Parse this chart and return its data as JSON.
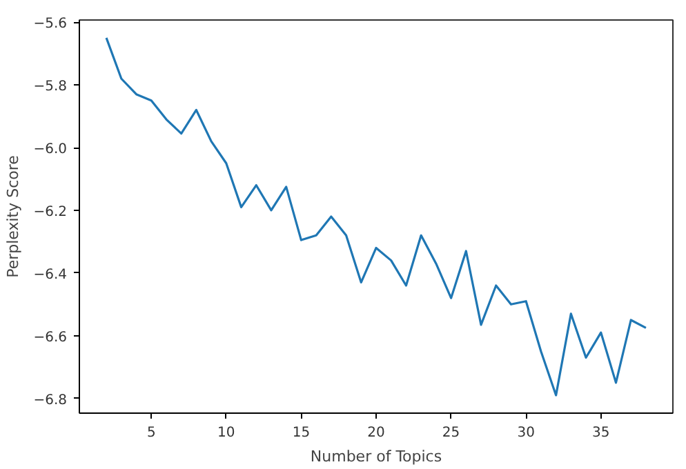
{
  "chart_data": {
    "type": "line",
    "xlabel": "Number of Topics",
    "ylabel": "Perplexity Score",
    "x": [
      2,
      3,
      4,
      5,
      6,
      7,
      8,
      9,
      10,
      11,
      12,
      13,
      14,
      15,
      16,
      17,
      18,
      19,
      20,
      21,
      22,
      23,
      24,
      25,
      26,
      27,
      28,
      29,
      30,
      31,
      32,
      33,
      34,
      35,
      36,
      37,
      38
    ],
    "series": [
      {
        "color": "#1f77b4",
        "values": [
          -5.65,
          -5.78,
          -5.83,
          -5.85,
          -5.91,
          -5.955,
          -5.88,
          -5.98,
          -6.05,
          -6.19,
          -6.12,
          -6.2,
          -6.125,
          -6.295,
          -6.28,
          -6.22,
          -6.28,
          -6.43,
          -6.32,
          -6.36,
          -6.44,
          -6.28,
          -6.37,
          -6.48,
          -6.33,
          -6.565,
          -6.44,
          -6.5,
          -6.49,
          -6.65,
          -6.79,
          -6.53,
          -6.67,
          -6.59,
          -6.75,
          -6.55,
          -6.575
        ]
      }
    ],
    "xlim": [
      0.2,
      39.8
    ],
    "ylim": [
      -6.847,
      -5.593
    ],
    "xticks": [
      5,
      10,
      15,
      20,
      25,
      30,
      35
    ],
    "yticks": [
      {
        "value": -6.8,
        "label": "−6.8"
      },
      {
        "value": -6.6,
        "label": "−6.6"
      },
      {
        "value": -6.4,
        "label": "−6.4"
      },
      {
        "value": -6.2,
        "label": "−6.2"
      },
      {
        "value": -6.0,
        "label": "−6.0"
      },
      {
        "value": -5.8,
        "label": "−5.8"
      },
      {
        "value": -5.6,
        "label": "−5.6"
      }
    ],
    "grid": false,
    "marker": "none",
    "line_style": "solid"
  }
}
